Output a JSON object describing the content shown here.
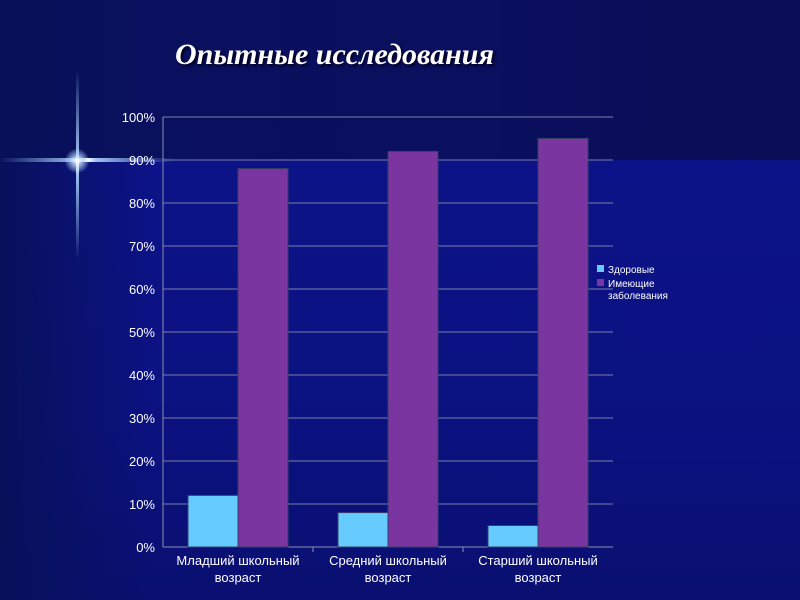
{
  "slide": {
    "title": "Опытные исследования"
  },
  "chart_data": {
    "type": "bar",
    "categories": [
      [
        "Младший школьный",
        "возраст"
      ],
      [
        "Средний школьный",
        "возраст"
      ],
      [
        "Старший школьный",
        "возраст"
      ]
    ],
    "series": [
      {
        "name": "Здоровые",
        "values": [
          12,
          8,
          5
        ],
        "color": "#66ccff"
      },
      {
        "name": [
          "Имеющие",
          "заболевания"
        ],
        "values": [
          88,
          92,
          95
        ],
        "color": "#7a35a0"
      }
    ],
    "yticks": [
      "0%",
      "10%",
      "20%",
      "30%",
      "40%",
      "50%",
      "60%",
      "70%",
      "80%",
      "90%",
      "100%"
    ],
    "ylim": [
      0,
      100
    ],
    "grid": true,
    "legend": "right",
    "colors": {
      "grid": "#7a7fa8",
      "axis": "#8a8fb5",
      "background": "#0a0d6e"
    }
  }
}
